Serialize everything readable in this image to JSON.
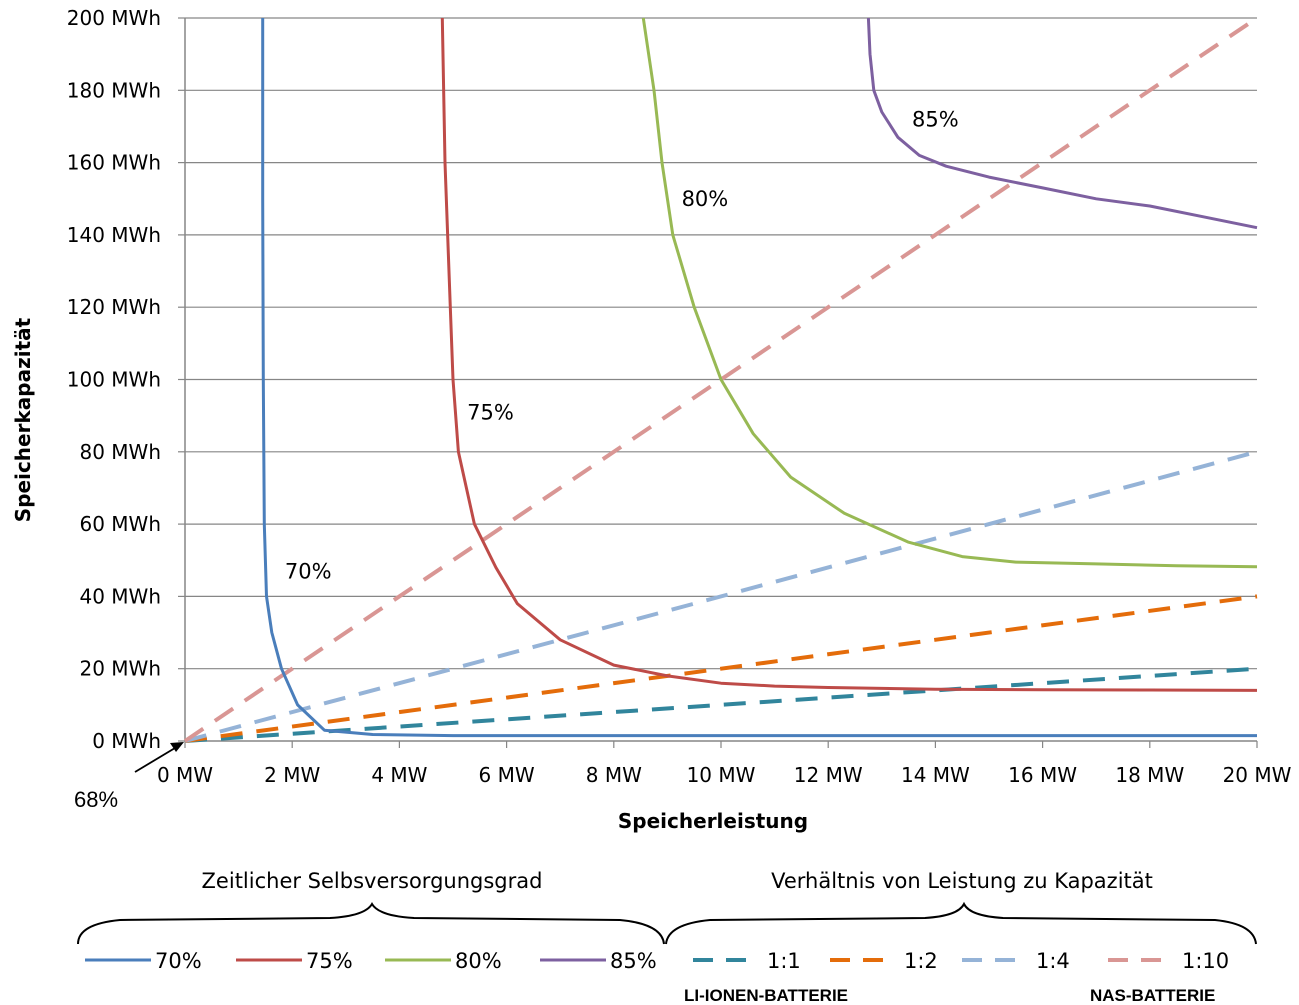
{
  "chart_data": {
    "type": "line",
    "xlabel": "Speicherleistung",
    "ylabel": "Speicherkapazität",
    "xlim": [
      0,
      20
    ],
    "ylim": [
      0,
      200
    ],
    "x_ticks": [
      "0 MW",
      "2 MW",
      "4 MW",
      "6 MW",
      "8 MW",
      "10 MW",
      "12 MW",
      "14 MW",
      "16 MW",
      "18 MW",
      "20 MW"
    ],
    "y_ticks": [
      "0 MWh",
      "20 MWh",
      "40 MWh",
      "60 MWh",
      "80 MWh",
      "100 MWh",
      "120 MWh",
      "140 MWh",
      "160 MWh",
      "180 MWh",
      "200 MWh"
    ],
    "grid": "horizontal",
    "series": [
      {
        "name": "70%",
        "group": "selbstversorgung",
        "color": "#4a7ebb",
        "dash": "solid",
        "x": [
          1.45,
          1.45,
          1.46,
          1.48,
          1.52,
          1.62,
          1.8,
          2.1,
          2.6,
          3.5,
          5,
          10,
          15,
          20
        ],
        "y": [
          200,
          150,
          100,
          60,
          40,
          30,
          20,
          10,
          3,
          1.8,
          1.5,
          1.5,
          1.5,
          1.5
        ],
        "label": "70%"
      },
      {
        "name": "75%",
        "group": "selbstversorgung",
        "color": "#be4b48",
        "dash": "solid",
        "x": [
          4.8,
          4.85,
          4.95,
          5.0,
          5.1,
          5.4,
          5.8,
          6.2,
          7.0,
          8.0,
          9.0,
          10.0,
          11.0,
          12.0,
          14.0,
          16.0,
          18.0,
          20.0
        ],
        "y": [
          200,
          160,
          120,
          100,
          80,
          60,
          48,
          38,
          28,
          21,
          18,
          16,
          15.2,
          14.8,
          14.3,
          14.2,
          14.1,
          14.0
        ],
        "label": "75%"
      },
      {
        "name": "80%",
        "group": "selbstversorgung",
        "color": "#98b954",
        "dash": "solid",
        "x": [
          8.55,
          8.75,
          8.9,
          9.1,
          9.5,
          10.0,
          10.6,
          11.3,
          12.3,
          13.5,
          14.5,
          15.5,
          17.0,
          18.5,
          20.0
        ],
        "y": [
          200,
          180,
          160,
          140,
          120,
          100,
          85,
          73,
          63,
          55,
          51,
          49.5,
          49,
          48.5,
          48.2
        ],
        "label": "80%"
      },
      {
        "name": "85%",
        "group": "selbstversorgung",
        "color": "#7d60a0",
        "dash": "solid",
        "x": [
          12.75,
          12.78,
          12.85,
          13.0,
          13.3,
          13.7,
          14.2,
          15.0,
          16.0,
          17.0,
          18.0,
          19.0,
          20.0
        ],
        "y": [
          200,
          190,
          180,
          174,
          167,
          162,
          159,
          156,
          153,
          150,
          148,
          145,
          142
        ],
        "label": "85%"
      },
      {
        "name": "1:1",
        "group": "verhaeltnis",
        "color": "#31859c",
        "dash": "dashed",
        "x": [
          0,
          20
        ],
        "y": [
          0,
          20
        ]
      },
      {
        "name": "1:2",
        "group": "verhaeltnis",
        "color": "#e46c0a",
        "dash": "dashed",
        "x": [
          0,
          20
        ],
        "y": [
          0,
          40
        ]
      },
      {
        "name": "1:4",
        "group": "verhaeltnis",
        "color": "#95b3d7",
        "dash": "dashed",
        "x": [
          0,
          20
        ],
        "y": [
          0,
          80
        ]
      },
      {
        "name": "1:10",
        "group": "verhaeltnis",
        "color": "#d99694",
        "dash": "dashed",
        "x": [
          0,
          20
        ],
        "y": [
          0,
          200
        ]
      }
    ],
    "annotations": {
      "origin_note": "68%"
    },
    "legend": {
      "placement": "bottom",
      "group_titles": {
        "selbstversorgung": "Zeitlicher Selbsversorgungsgrad",
        "verhaeltnis": "Verhältnis von Leistung zu Kapazität"
      },
      "battery_labels": {
        "li_ionen": "LI-IONEN-BATTERIE",
        "nas": "NAS-BATTERIE"
      }
    }
  }
}
